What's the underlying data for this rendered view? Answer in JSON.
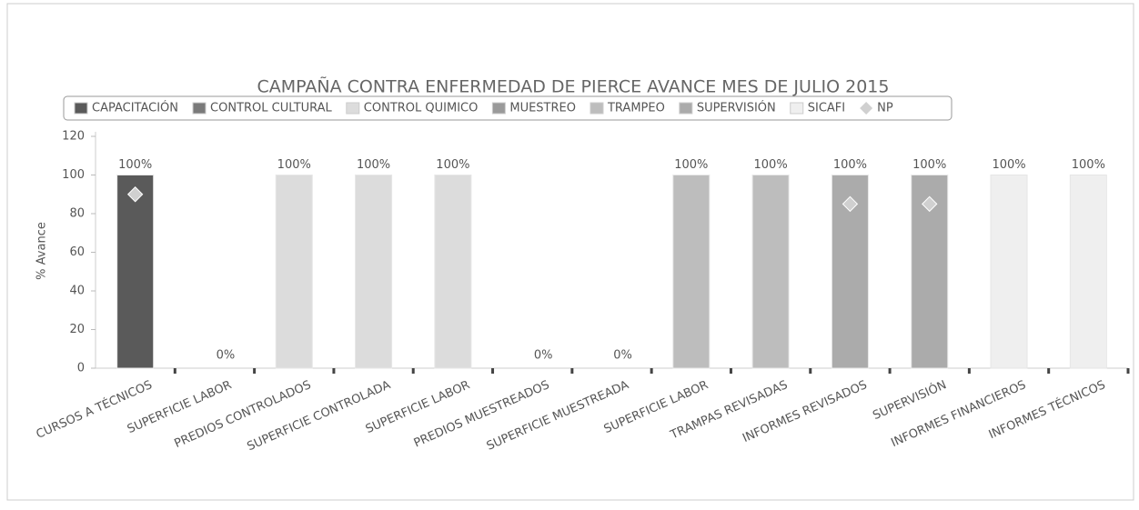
{
  "chart_data": {
    "type": "bar",
    "title": "CAMPAÑA CONTRA ENFERMEDAD DE PIERCE AVANCE MES DE JULIO 2015",
    "y_label": "% Avance",
    "categories": [
      "CURSOS A TÉCNICOS",
      "SUPERFICIE LABOR",
      "PREDIOS CONTROLADOS",
      "SUPERFICIE CONTROLADA",
      "SUPERFICIE LABOR",
      "PREDIOS MUESTREADOS",
      "SUPERFICIE MUESTREADA",
      "SUPERFICIE LABOR",
      "TRAMPAS REVISADAS",
      "INFORMES REVISADOS",
      "SUPERVISIÓN",
      "INFORMES FINANCIEROS",
      "INFORMES TÉCNICOS"
    ],
    "series": [
      {
        "name": "CAPACITACIÓN",
        "color": "#5a5a5a",
        "values": [
          100,
          null,
          null,
          null,
          null,
          null,
          null,
          null,
          null,
          null,
          null,
          null,
          null
        ],
        "value_labels": [
          "100%",
          null,
          null,
          null,
          null,
          null,
          null,
          null,
          null,
          null,
          null,
          null,
          null
        ]
      },
      {
        "name": "CONTROL CULTURAL",
        "color": "#7a7a7a",
        "values": [
          null,
          0,
          null,
          null,
          null,
          null,
          null,
          null,
          null,
          null,
          null,
          null,
          null
        ],
        "value_labels": [
          null,
          "0%",
          null,
          null,
          null,
          null,
          null,
          null,
          null,
          null,
          null,
          null,
          null
        ]
      },
      {
        "name": "CONTROL QUIMICO",
        "color": "#dcdcdc",
        "values": [
          null,
          null,
          100,
          100,
          100,
          null,
          null,
          null,
          null,
          null,
          null,
          null,
          null
        ],
        "value_labels": [
          null,
          null,
          "100%",
          "100%",
          "100%",
          null,
          null,
          null,
          null,
          null,
          null,
          null,
          null
        ]
      },
      {
        "name": "MUESTREO",
        "color": "#9a9a9a",
        "values": [
          null,
          null,
          null,
          null,
          null,
          0,
          0,
          null,
          null,
          null,
          null,
          null,
          null
        ],
        "value_labels": [
          null,
          null,
          null,
          null,
          null,
          "0%",
          "0%",
          null,
          null,
          null,
          null,
          null,
          null
        ]
      },
      {
        "name": "TRAMPEO",
        "color": "#bdbdbd",
        "values": [
          null,
          null,
          null,
          null,
          null,
          null,
          null,
          100,
          100,
          null,
          null,
          null,
          null
        ],
        "value_labels": [
          null,
          null,
          null,
          null,
          null,
          null,
          null,
          "100%",
          "100%",
          null,
          null,
          null,
          null
        ]
      },
      {
        "name": "SUPERVISIÓN",
        "color": "#ababab",
        "values": [
          null,
          null,
          null,
          null,
          null,
          null,
          null,
          null,
          null,
          100,
          100,
          null,
          null
        ],
        "value_labels": [
          null,
          null,
          null,
          null,
          null,
          null,
          null,
          null,
          null,
          "100%",
          "100%",
          null,
          null
        ]
      },
      {
        "name": "SICAFI",
        "color": "#efefef",
        "values": [
          null,
          null,
          null,
          null,
          null,
          null,
          null,
          null,
          null,
          null,
          null,
          100,
          100
        ],
        "value_labels": [
          null,
          null,
          null,
          null,
          null,
          null,
          null,
          null,
          null,
          null,
          null,
          "100%",
          "100%"
        ]
      },
      {
        "name": "NP",
        "color": "#d0d0d0",
        "marker": "diamond",
        "values": [
          90,
          null,
          null,
          null,
          null,
          null,
          null,
          null,
          null,
          85,
          85,
          null,
          null
        ]
      }
    ],
    "ylim": [
      0,
      120
    ],
    "yticks": [
      0,
      20,
      40,
      60,
      80,
      100,
      120
    ],
    "grid": false
  }
}
